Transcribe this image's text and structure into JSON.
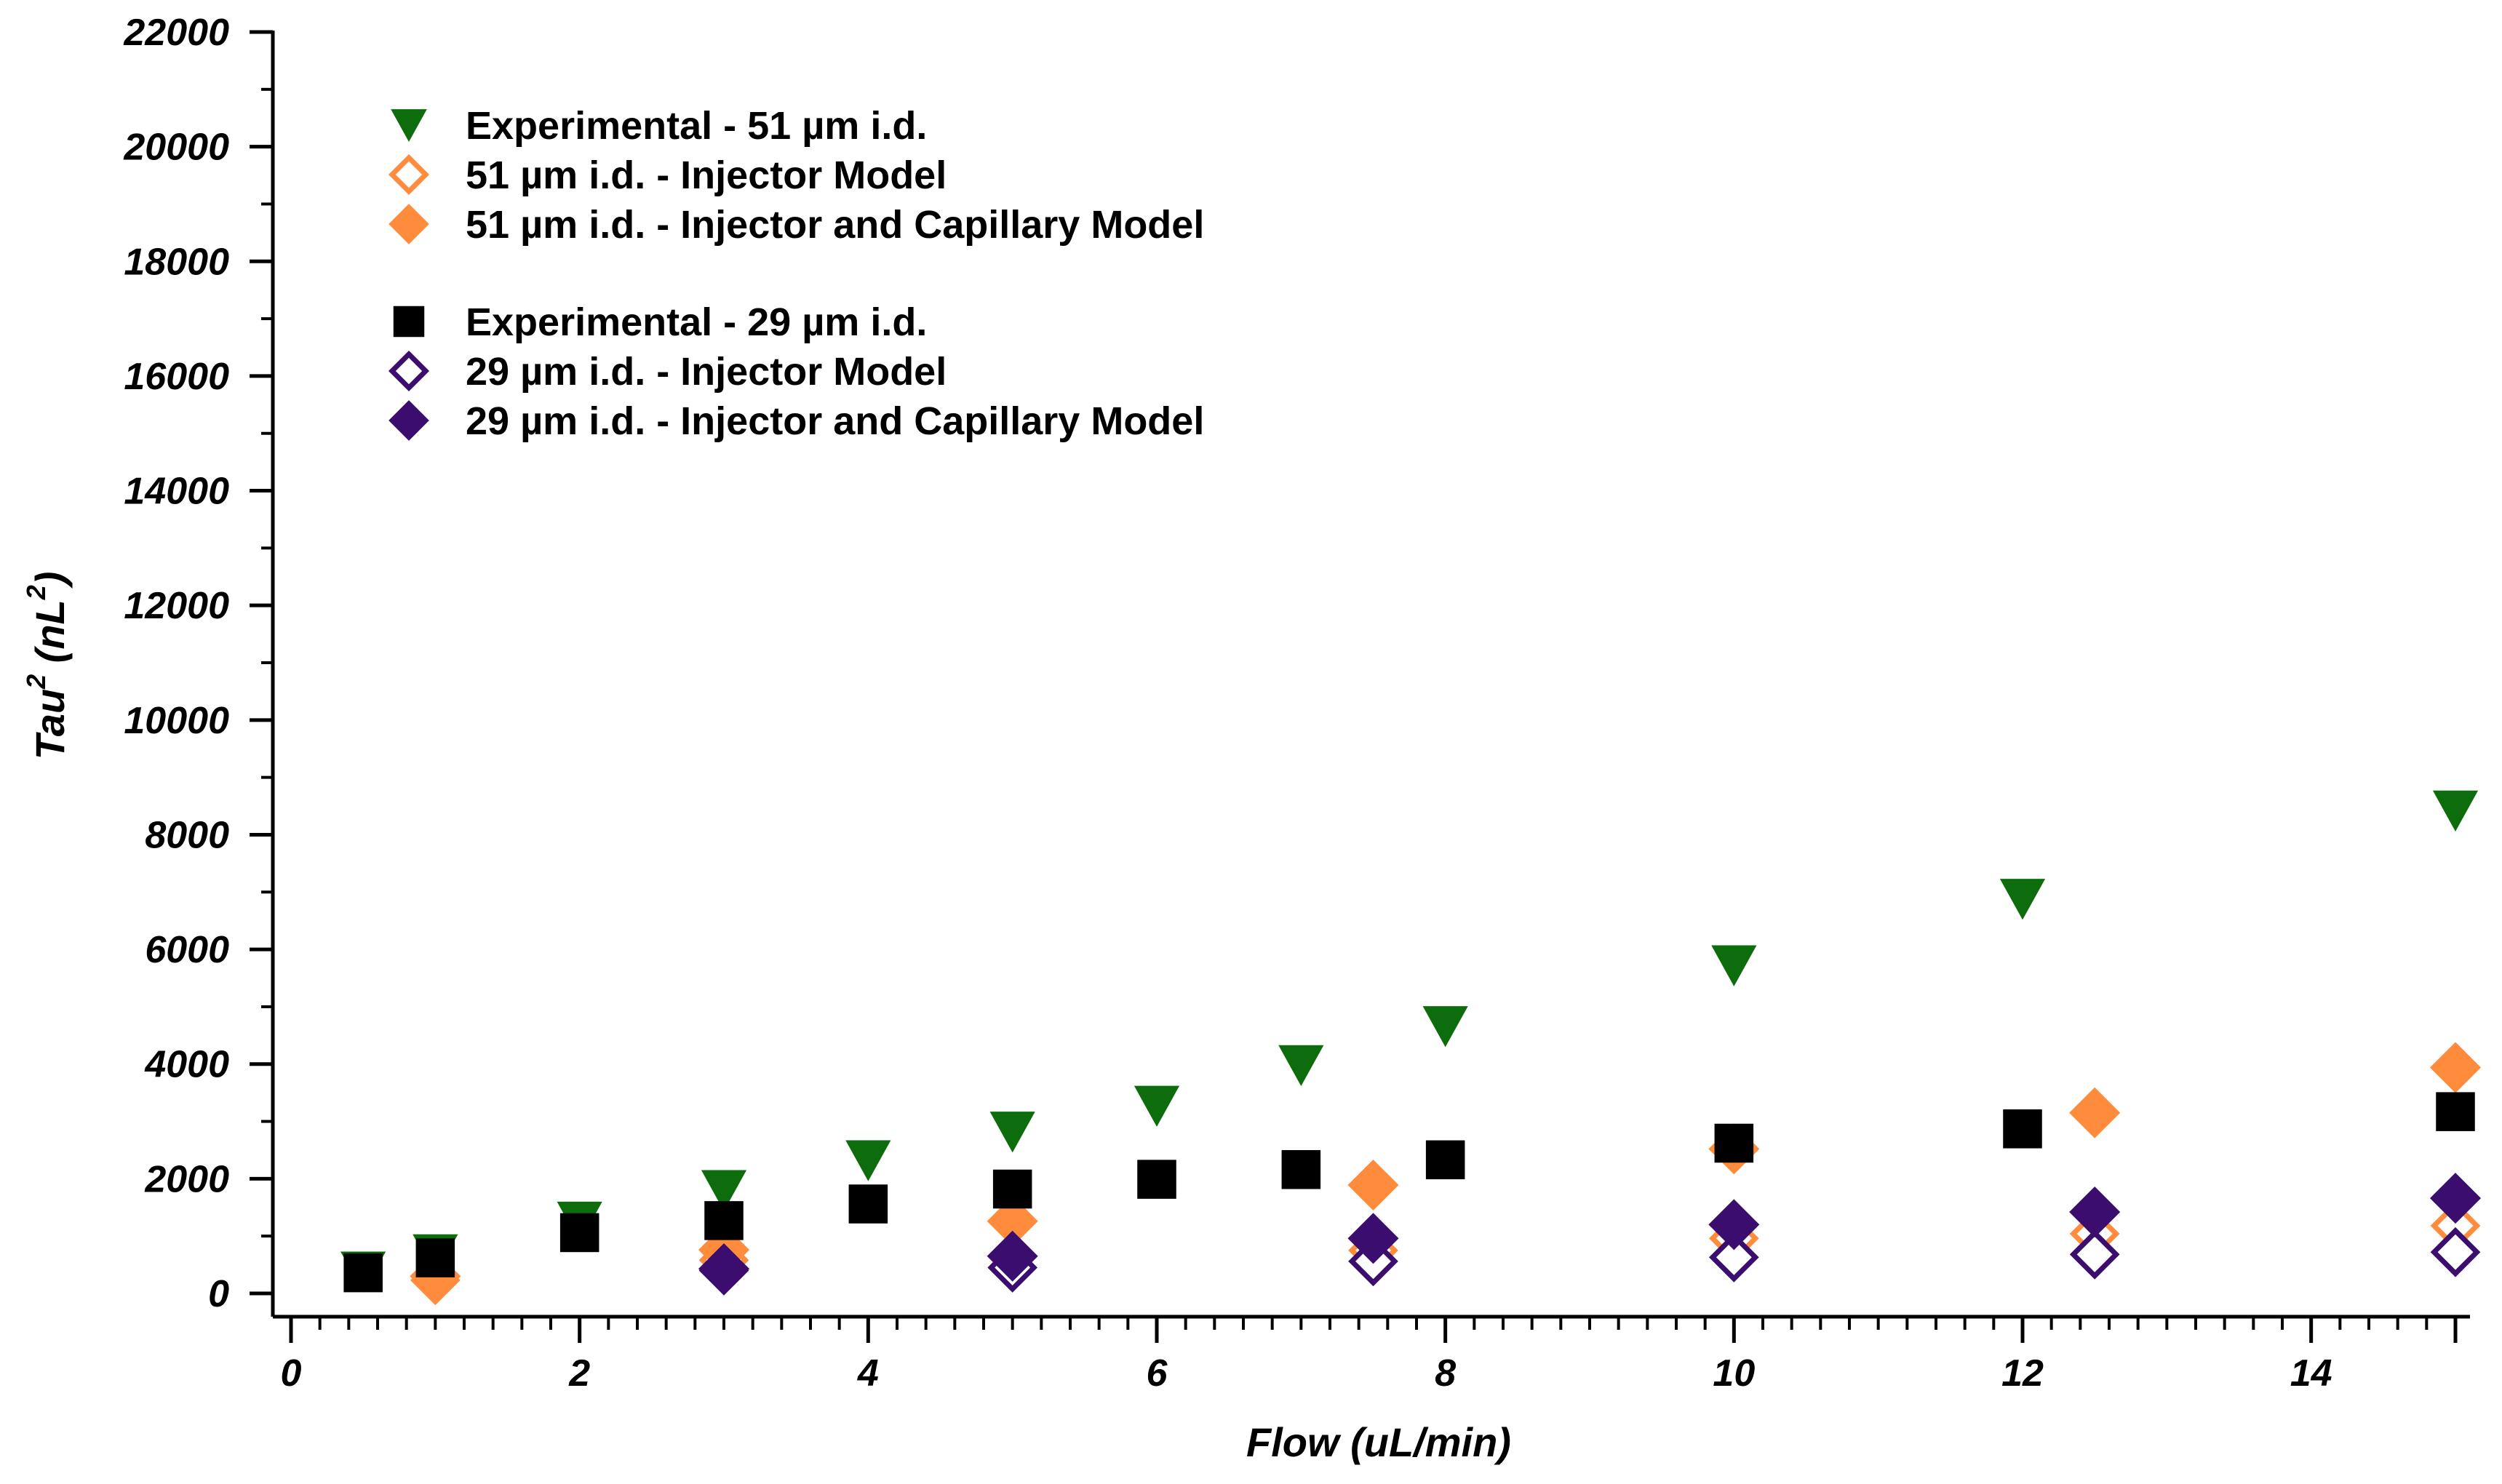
{
  "chart_data": {
    "type": "scatter",
    "xlabel": "Flow (uL/min)",
    "ylabel": {
      "base": "Tau",
      "base_sup": "2",
      "unit_open": " (nL",
      "unit_sup": "2",
      "unit_close": ")"
    },
    "xlim": [
      -0.2,
      15.1
    ],
    "ylim": [
      -350,
      22000
    ],
    "x_ticks": [
      0,
      2,
      4,
      6,
      8,
      10,
      12,
      14
    ],
    "x_minor_step": 0.2,
    "y_ticks": [
      0,
      2000,
      4000,
      6000,
      8000,
      10000,
      12000,
      14000,
      16000,
      18000,
      20000,
      22000
    ],
    "y_minor_step": 1000,
    "grid": false,
    "legend_position": "top-left",
    "legend_group_break_after": 2,
    "series": [
      {
        "name": "Experimental - 51 µm i.d.",
        "marker": "triangle-down",
        "filled": true,
        "color": "#0d6d0d",
        "x": [
          0.5,
          1,
          2,
          3,
          4,
          5,
          6,
          7,
          8,
          10,
          12,
          15
        ],
        "y": [
          380,
          680,
          1250,
          1800,
          2320,
          2820,
          3270,
          3980,
          4660,
          5720,
          6880,
          8420
        ]
      },
      {
        "name": "51 µm i.d. - Injector Model",
        "marker": "diamond",
        "filled": false,
        "color": "#ff8c3c",
        "x": [
          1,
          3,
          5,
          7.5,
          10,
          12.5,
          15
        ],
        "y": [
          230,
          580,
          640,
          750,
          960,
          1040,
          1180
        ]
      },
      {
        "name": "51 µm i.d. - Injector and Capillary Model",
        "marker": "diamond",
        "filled": true,
        "color": "#ff8c3c",
        "x": [
          1,
          3,
          5,
          7.5,
          10,
          12.5,
          15
        ],
        "y": [
          300,
          760,
          1260,
          1890,
          2520,
          3150,
          3940
        ]
      },
      {
        "name": "Experimental - 29 µm i.d.",
        "marker": "square",
        "filled": true,
        "color": "#000000",
        "x": [
          0.5,
          1,
          2,
          3,
          4,
          5,
          6,
          7,
          8,
          10,
          12,
          15
        ],
        "y": [
          360,
          620,
          1060,
          1270,
          1560,
          1820,
          1990,
          2160,
          2330,
          2620,
          2870,
          3170
        ]
      },
      {
        "name": "29 µm i.d. - Injector Model",
        "marker": "diamond",
        "filled": false,
        "color": "#3a0d6e",
        "x": [
          3,
          5,
          7.5,
          10,
          12.5,
          15
        ],
        "y": [
          400,
          450,
          560,
          630,
          680,
          720
        ]
      },
      {
        "name": "29 µm i.d. - Injector and Capillary Model",
        "marker": "diamond",
        "filled": true,
        "color": "#3a0d6e",
        "x": [
          3,
          5,
          7.5,
          10,
          12.5,
          15
        ],
        "y": [
          430,
          650,
          960,
          1200,
          1420,
          1660
        ]
      }
    ]
  }
}
